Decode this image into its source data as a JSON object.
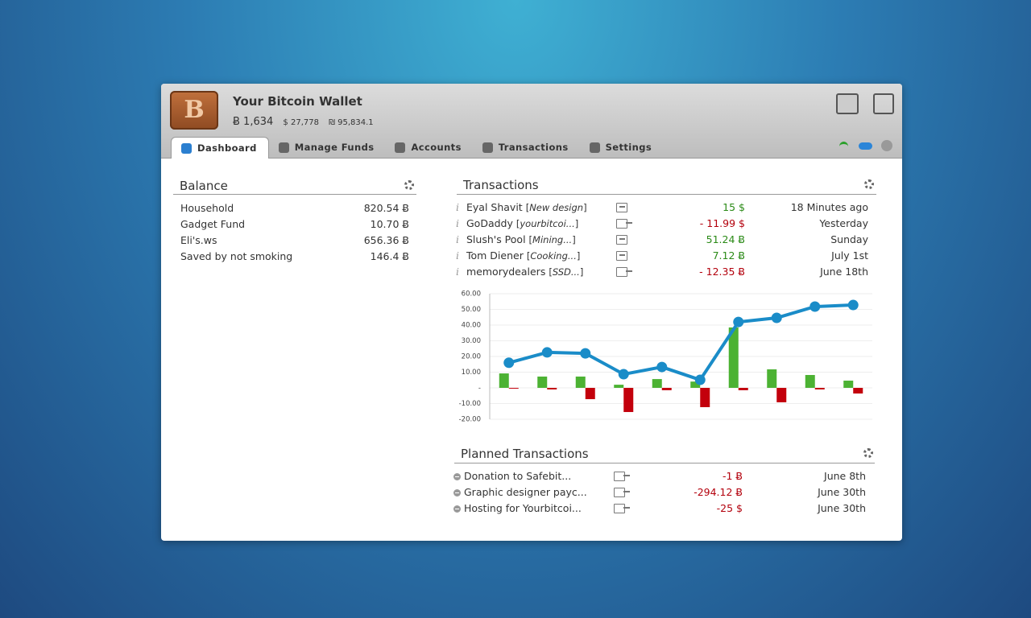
{
  "window": {
    "title": "Your Bitcoin Wallet",
    "balance_btc": "Ƀ 1,634",
    "balance_usd": "$ 27,778",
    "balance_ils": "₪ 95,834.1"
  },
  "tabs": [
    {
      "label": "Dashboard",
      "active": true
    },
    {
      "label": "Manage Funds",
      "active": false
    },
    {
      "label": "Accounts",
      "active": false
    },
    {
      "label": "Transactions",
      "active": false
    },
    {
      "label": "Settings",
      "active": false
    }
  ],
  "balance": {
    "title": "Balance",
    "rows": [
      {
        "name": "Household",
        "amount": "820.54 Ƀ"
      },
      {
        "name": "Gadget Fund",
        "amount": "10.70 Ƀ"
      },
      {
        "name": "Eli's.ws",
        "amount": "656.36 Ƀ"
      },
      {
        "name": "Saved by not smoking",
        "amount": "146.4 Ƀ"
      }
    ]
  },
  "transactions": {
    "title": "Transactions",
    "rows": [
      {
        "name": "Eyal Shavit",
        "detail": "New design",
        "direction": "in",
        "amount": "15 $",
        "date": "18 Minutes ago"
      },
      {
        "name": "GoDaddy",
        "detail": "yourbitcoi...",
        "direction": "out",
        "amount": "- 11.99 $",
        "date": "Yesterday"
      },
      {
        "name": "Slush's Pool",
        "detail": "Mining...",
        "direction": "in",
        "amount": "51.24 Ƀ",
        "date": "Sunday"
      },
      {
        "name": "Tom Diener",
        "detail": "Cooking...",
        "direction": "in",
        "amount": "7.12 Ƀ",
        "date": "July 1st"
      },
      {
        "name": "memorydealers",
        "detail": "SSD...",
        "direction": "out",
        "amount": "- 12.35 Ƀ",
        "date": "June 18th"
      }
    ]
  },
  "chart_data": {
    "type": "bar",
    "ylim": [
      -20,
      60
    ],
    "yticks": [
      {
        "value": 60,
        "label": "60.00"
      },
      {
        "value": 50,
        "label": "50.00"
      },
      {
        "value": 40,
        "label": "40.00"
      },
      {
        "value": 30,
        "label": "30.00"
      },
      {
        "value": 20,
        "label": "20.00"
      },
      {
        "value": 10,
        "label": "10.00"
      },
      {
        "value": 0,
        "label": "-"
      },
      {
        "value": -10,
        "label": "-10.00"
      },
      {
        "value": -20,
        "label": "-20.00"
      }
    ],
    "grid": true,
    "series": [
      {
        "type": "bar",
        "color": "#4cb233",
        "values": [
          9.2,
          7.2,
          7.2,
          2,
          5.6,
          4,
          38.5,
          11.8,
          8.2,
          4.6
        ]
      },
      {
        "type": "bar",
        "color": "#c3000c",
        "values": [
          -0.5,
          -1,
          -7.2,
          -15.4,
          -1.5,
          -12.3,
          -1.5,
          -9.2,
          -1,
          -3.6
        ]
      },
      {
        "type": "line",
        "color": "#1a8cc8",
        "values": [
          16,
          22.6,
          22,
          8.7,
          13.3,
          5.1,
          42,
          44.6,
          51.8,
          52.8
        ]
      }
    ]
  },
  "planned": {
    "title": "Planned Transactions",
    "rows": [
      {
        "name": "Donation to Safebit...",
        "direction": "out",
        "amount": "-1 Ƀ",
        "date": "June 8th"
      },
      {
        "name": "Graphic designer payc...",
        "direction": "out",
        "amount": "-294.12 Ƀ",
        "date": "June 30th"
      },
      {
        "name": "Hosting for Yourbitcoi...",
        "direction": "out",
        "amount": "-25 $",
        "date": "June 30th"
      }
    ]
  }
}
